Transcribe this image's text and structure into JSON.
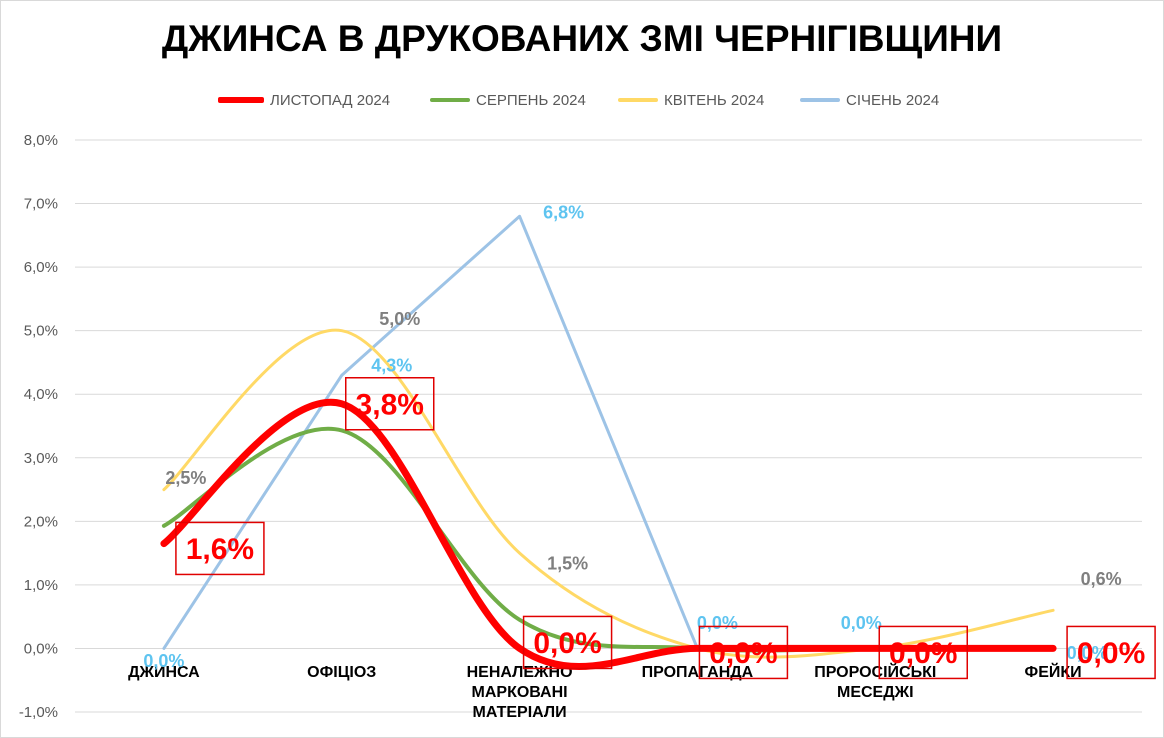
{
  "chart_data": {
    "type": "line",
    "title": "ДЖИНСА В ДРУКОВАНИХ ЗМІ ЧЕРНІГІВЩИНИ",
    "categories": [
      [
        "ДЖИНСА"
      ],
      [
        "ОФІЦІОЗ"
      ],
      [
        "НЕНАЛЕЖНО",
        "МАРКОВАНІ",
        "МАТЕРІАЛИ"
      ],
      [
        "ПРОПАГАНДА"
      ],
      [
        "ПРОРОСІЙСЬКІ",
        "МЕСЕДЖІ"
      ],
      [
        "ФЕЙКИ"
      ]
    ],
    "yaxis": {
      "min": -0.01,
      "max": 0.08,
      "ticks": [
        {
          "value": -0.01,
          "label": "-1,0%"
        },
        {
          "value": 0.0,
          "label": "0,0%"
        },
        {
          "value": 0.01,
          "label": "1,0%"
        },
        {
          "value": 0.02,
          "label": "2,0%"
        },
        {
          "value": 0.03,
          "label": "3,0%"
        },
        {
          "value": 0.04,
          "label": "4,0%"
        },
        {
          "value": 0.05,
          "label": "5,0%"
        },
        {
          "value": 0.06,
          "label": "6,0%"
        },
        {
          "value": 0.07,
          "label": "7,0%"
        },
        {
          "value": 0.08,
          "label": "8,0%"
        }
      ]
    },
    "grid": true,
    "legend_position": "top",
    "series": [
      {
        "name": "СІЧЕНЬ 2024",
        "color": "#9dc3e6",
        "smooth": false,
        "width": 3,
        "values": [
          0.0,
          0.043,
          0.068,
          0.0,
          0.0,
          0.0
        ],
        "labels": [
          "0,0%",
          "4,3%",
          "6,8%",
          "0,0%",
          "0,0%",
          "0,0%"
        ],
        "label_color": "#5ec4f0",
        "label_size": 18,
        "boxed": false
      },
      {
        "name": "КВІТЕНЬ 2024",
        "color": "#ffd966",
        "smooth": true,
        "width": 3,
        "values": [
          0.025,
          0.05,
          0.015,
          0.0,
          0.0,
          0.006
        ],
        "labels": [
          "2,5%",
          "5,0%",
          "1,5%",
          "",
          "",
          "0,6%"
        ],
        "label_color": "#7f7f7f",
        "label_size": 18,
        "boxed": false
      },
      {
        "name": "СЕРПЕНЬ 2024",
        "color": "#70ad47",
        "smooth": true,
        "width": 4,
        "values": [
          0.0193,
          0.0343,
          0.0045,
          0.0,
          0.0,
          0.0
        ],
        "labels": [],
        "label_color": "#70ad47",
        "label_size": 18,
        "boxed": false
      },
      {
        "name": "ЛИСТОПАД 2024",
        "color": "#ff0000",
        "smooth": true,
        "width": 7,
        "values": [
          0.0165,
          0.0385,
          0.0,
          0.0,
          0.0,
          0.0
        ],
        "labels": [
          "1,6%",
          "3,8%",
          "0,0%",
          "0,0%",
          "0,0%",
          "0,0%"
        ],
        "label_color": "#ff0000",
        "label_size": 30,
        "boxed": true
      }
    ],
    "legend_order": [
      "ЛИСТОПАД 2024",
      "СЕРПЕНЬ 2024",
      "КВІТЕНЬ 2024",
      "СІЧЕНЬ 2024"
    ]
  }
}
